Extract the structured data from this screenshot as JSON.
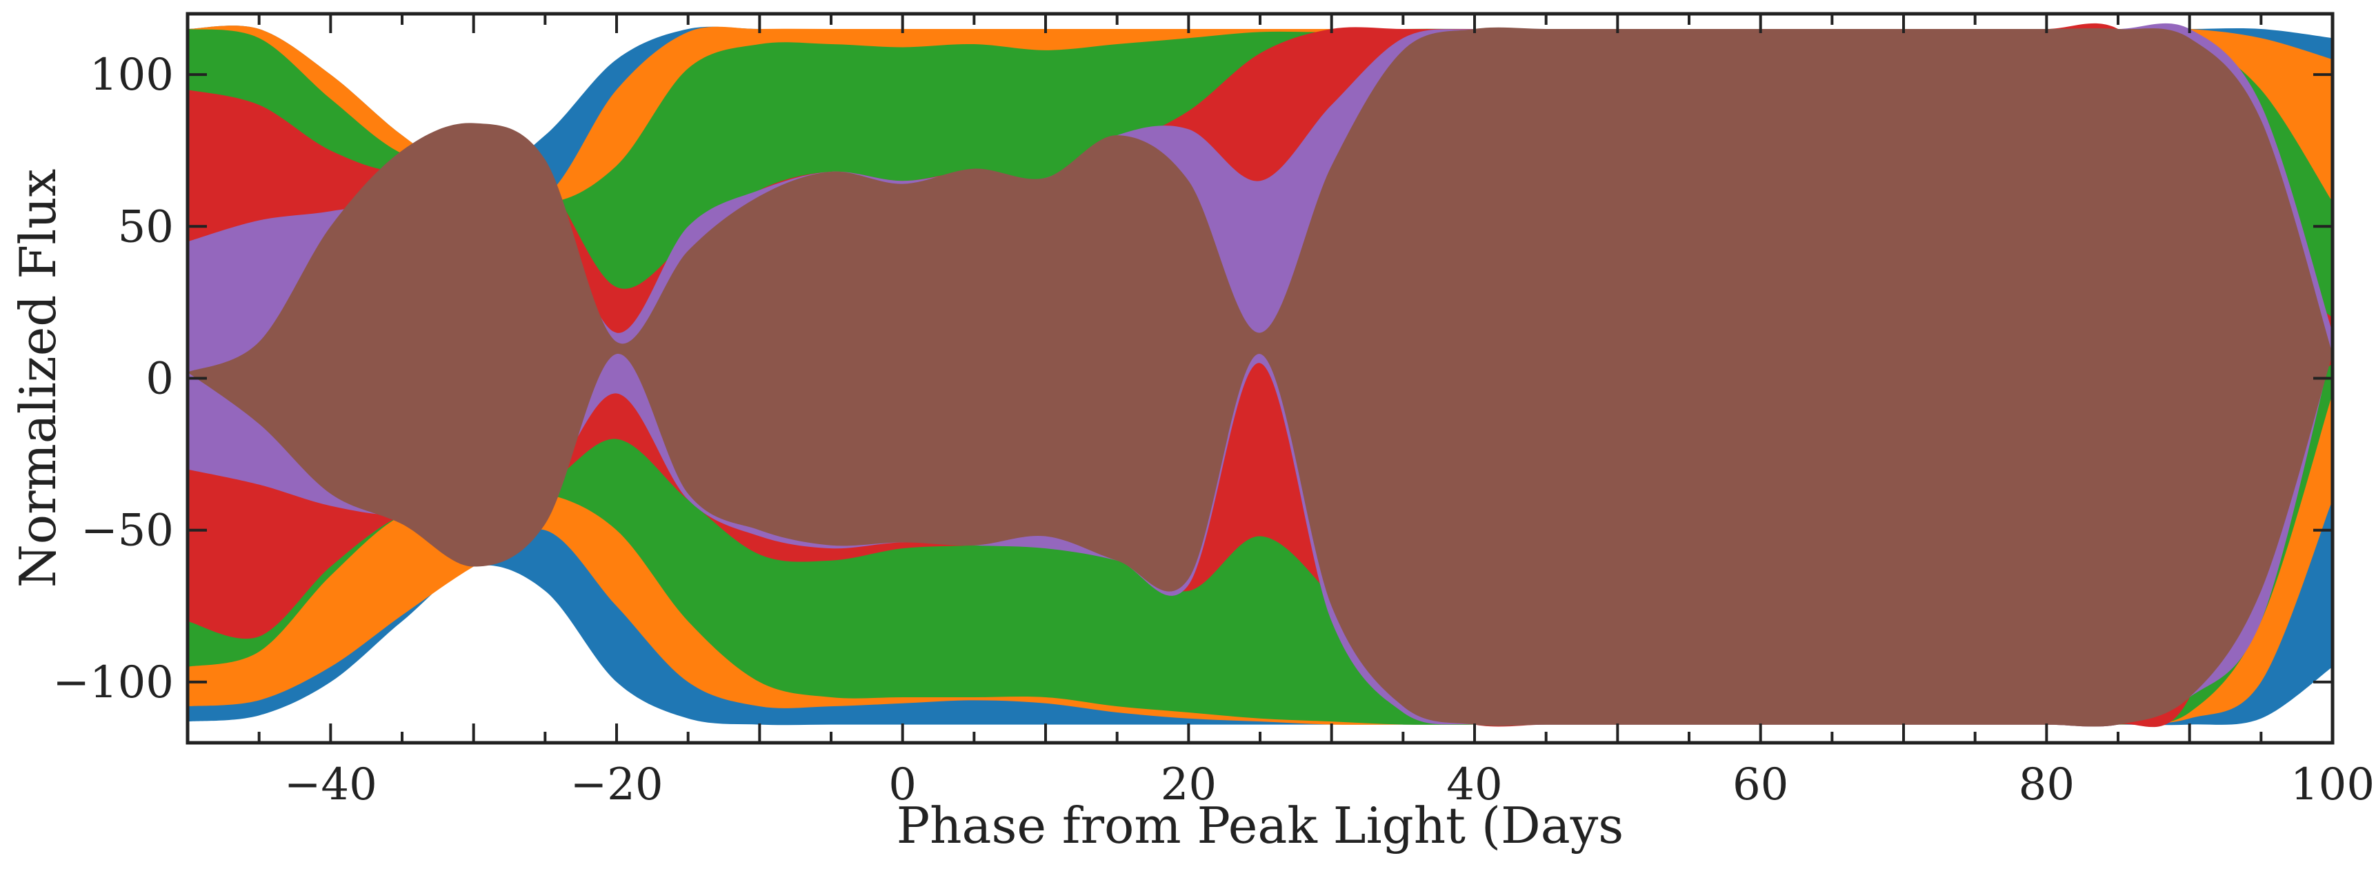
{
  "chart_data": {
    "type": "area",
    "title": "",
    "xlabel": "Phase from Peak Light (Days",
    "ylabel": "Normalized Flux",
    "xlim": [
      -50,
      100
    ],
    "ylim": [
      -120,
      120
    ],
    "xticks": [
      -40,
      -20,
      0,
      20,
      40,
      60,
      80,
      100
    ],
    "xtick_labels": [
      "−40",
      "−20",
      "0",
      "20",
      "40",
      "60",
      "80",
      "100"
    ],
    "yticks": [
      -100,
      -50,
      0,
      50,
      100
    ],
    "ytick_labels": [
      "−100",
      "−50",
      "0",
      "50",
      "100"
    ],
    "grid": false,
    "legend": "none",
    "x": [
      -50,
      -45,
      -40,
      -35,
      -30,
      -25,
      -20,
      -15,
      -10,
      -5,
      0,
      5,
      10,
      15,
      20,
      25,
      30,
      35,
      40,
      45,
      50,
      55,
      60,
      65,
      70,
      75,
      80,
      85,
      90,
      95,
      100
    ],
    "series": [
      {
        "color": "#1f77b4",
        "upper": [
          115,
          115,
          100,
          80,
          65,
          80,
          105,
          115,
          115,
          115,
          115,
          115,
          115,
          115,
          115,
          115,
          115,
          115,
          115,
          115,
          115,
          115,
          115,
          115,
          115,
          115,
          115,
          115,
          115,
          115,
          112
        ],
        "lower": [
          -113,
          -111,
          -100,
          -80,
          -62,
          -70,
          -100,
          -112,
          -114,
          -114,
          -114,
          -114,
          -114,
          -114,
          -114,
          -114,
          -114,
          -114,
          -114,
          -114,
          -114,
          -114,
          -114,
          -114,
          -114,
          -114,
          -114,
          -114,
          -114,
          -112,
          -95
        ]
      },
      {
        "color": "#ff7f0e",
        "upper": [
          115,
          115,
          100,
          80,
          65,
          60,
          95,
          114,
          115,
          115,
          115,
          115,
          115,
          115,
          115,
          115,
          115,
          115,
          115,
          115,
          115,
          115,
          115,
          115,
          115,
          115,
          115,
          115,
          115,
          112,
          105
        ],
        "lower": [
          -108,
          -106,
          -95,
          -78,
          -62,
          -50,
          -75,
          -100,
          -108,
          -108,
          -107,
          -106,
          -107,
          -110,
          -112,
          -113,
          -114,
          -114,
          -114,
          -114,
          -114,
          -114,
          -114,
          -114,
          -114,
          -114,
          -114,
          -114,
          -112,
          -100,
          -40
        ]
      },
      {
        "color": "#2ca02c",
        "upper": [
          115,
          112,
          92,
          74,
          70,
          58,
          70,
          102,
          110,
          110,
          109,
          110,
          108,
          110,
          112,
          114,
          114,
          115,
          115,
          115,
          115,
          115,
          115,
          115,
          115,
          115,
          115,
          115,
          112,
          95,
          58
        ],
        "lower": [
          -95,
          -90,
          -65,
          -45,
          -40,
          -38,
          -50,
          -80,
          -100,
          -105,
          -105,
          -105,
          -105,
          -108,
          -110,
          -112,
          -113,
          -114,
          -114,
          -114,
          -114,
          -114,
          -114,
          -114,
          -114,
          -114,
          -114,
          -114,
          -110,
          -80,
          -5
        ]
      },
      {
        "color": "#d62728",
        "upper": [
          95,
          90,
          75,
          68,
          75,
          65,
          30,
          45,
          62,
          68,
          65,
          68,
          64,
          76,
          88,
          107,
          115,
          115,
          115,
          115,
          115,
          115,
          115,
          115,
          115,
          115,
          115,
          115,
          90,
          40,
          20
        ],
        "lower": [
          -80,
          -85,
          -62,
          -45,
          -40,
          -35,
          -20,
          -40,
          -58,
          -60,
          -56,
          -55,
          -54,
          -60,
          -70,
          -52,
          -72,
          -105,
          -114,
          -114,
          -114,
          -114,
          -114,
          -114,
          -114,
          -114,
          -114,
          -114,
          -105,
          -20,
          5
        ]
      },
      {
        "color": "#9467bd",
        "upper": [
          45,
          52,
          55,
          60,
          75,
          60,
          15,
          50,
          62,
          68,
          65,
          68,
          66,
          80,
          82,
          65,
          90,
          112,
          115,
          115,
          115,
          115,
          115,
          115,
          115,
          115,
          115,
          115,
          115,
          90,
          15
        ],
        "lower": [
          -30,
          -35,
          -42,
          -45,
          -40,
          -35,
          -5,
          -40,
          -52,
          -56,
          -54,
          -55,
          -56,
          -60,
          -68,
          5,
          -80,
          -110,
          -114,
          -114,
          -114,
          -114,
          -114,
          -114,
          -114,
          -114,
          -114,
          -114,
          -105,
          -80,
          10
        ]
      },
      {
        "color": "#8c564b",
        "upper": [
          2,
          12,
          50,
          75,
          84,
          72,
          12,
          42,
          60,
          68,
          64,
          69,
          66,
          80,
          65,
          15,
          70,
          108,
          115,
          115,
          115,
          115,
          115,
          115,
          115,
          115,
          115,
          115,
          112,
          85,
          8
        ],
        "lower": [
          2,
          -15,
          -38,
          -48,
          -62,
          -48,
          8,
          -38,
          -50,
          -55,
          -54,
          -55,
          -52,
          -60,
          -66,
          8,
          -75,
          -108,
          -114,
          -114,
          -114,
          -114,
          -114,
          -114,
          -114,
          -114,
          -114,
          -114,
          -105,
          -70,
          8
        ]
      }
    ]
  }
}
